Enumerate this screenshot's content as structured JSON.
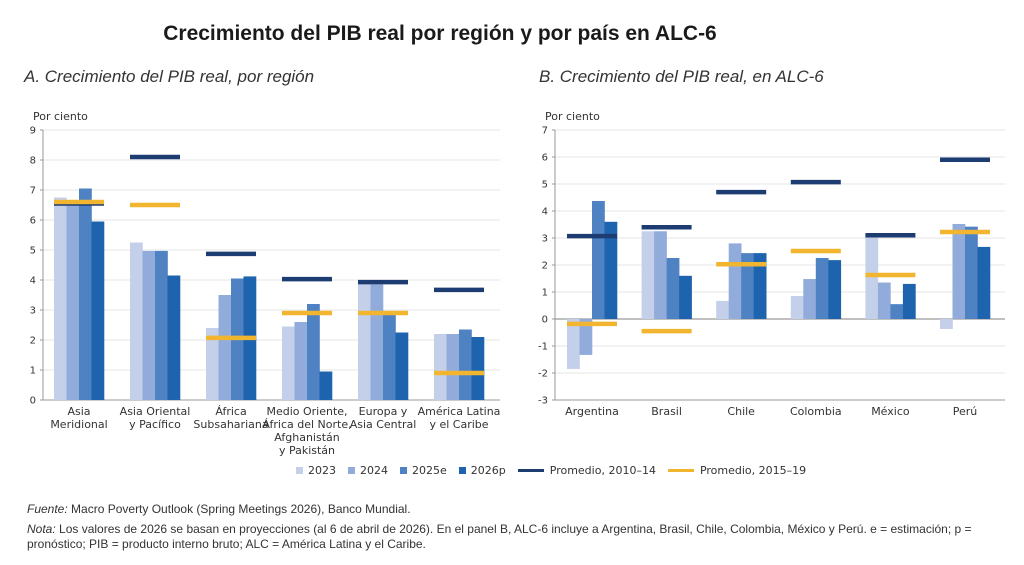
{
  "title": "Crecimiento del PIB real por región y por país en ALC-6",
  "colors": {
    "2023": "#c4d0ea",
    "2024": "#91acdb",
    "2025e": "#4f82c2",
    "2026p": "#1d63ad",
    "avg_2010_14": "#1d3c72",
    "avg_2015_19": "#f2b530",
    "grid": "#e6e6e6",
    "axis": "#999999"
  },
  "legend": {
    "items": [
      {
        "key": "2023",
        "label": "2023",
        "type": "bar"
      },
      {
        "key": "2024",
        "label": "2024",
        "type": "bar"
      },
      {
        "key": "2025e",
        "label": "2025e",
        "type": "bar"
      },
      {
        "key": "2026p",
        "label": "2026p",
        "type": "bar"
      },
      {
        "key": "avg_2010_14",
        "label": "Promedio, 2010–14",
        "type": "line"
      },
      {
        "key": "avg_2015_19",
        "label": "Promedio, 2015–19",
        "type": "line"
      }
    ],
    "placement": "bottom-center"
  },
  "chart_data": [
    {
      "type": "bar",
      "title": "A. Crecimiento del PIB real, por región",
      "ylabel": "Por ciento",
      "xlabel": "",
      "ylim": [
        0,
        9
      ],
      "yticks": [
        0,
        1,
        2,
        3,
        4,
        5,
        6,
        7,
        8,
        9
      ],
      "grid": true,
      "categories": [
        [
          "Asia",
          "Meridional"
        ],
        [
          "Asia Oriental",
          "y Pacífico"
        ],
        [
          "África",
          "Subsahariana"
        ],
        [
          "Medio Oriente,",
          "África del Norte,",
          "Afghanistán",
          "y Pakistán"
        ],
        [
          "Europa y",
          "Asia Central"
        ],
        [
          "América Latina",
          "y el Caribe"
        ]
      ],
      "series": [
        {
          "name": "2023",
          "values": [
            6.75,
            5.25,
            2.4,
            2.45,
            3.85,
            2.2
          ]
        },
        {
          "name": "2024",
          "values": [
            6.6,
            4.97,
            3.5,
            2.6,
            3.85,
            2.2
          ]
        },
        {
          "name": "2025e",
          "values": [
            7.05,
            4.97,
            4.05,
            3.2,
            2.85,
            2.35
          ]
        },
        {
          "name": "2026p",
          "values": [
            5.95,
            4.15,
            4.12,
            0.95,
            2.25,
            2.1
          ]
        }
      ],
      "reference_lines": [
        {
          "name": "Promedio, 2010–14",
          "values": [
            6.55,
            8.1,
            4.87,
            4.03,
            3.93,
            3.67
          ]
        },
        {
          "name": "Promedio, 2015–19",
          "values": [
            6.6,
            6.5,
            2.07,
            2.9,
            2.9,
            0.9
          ]
        }
      ]
    },
    {
      "type": "bar",
      "title": "B. Crecimiento del PIB real, en ALC-6",
      "ylabel": "Por ciento",
      "xlabel": "",
      "ylim": [
        -3,
        7
      ],
      "yticks": [
        -3,
        -2,
        -1,
        0,
        1,
        2,
        3,
        4,
        5,
        6,
        7
      ],
      "grid": true,
      "categories": [
        [
          "Argentina"
        ],
        [
          "Brasil"
        ],
        [
          "Chile"
        ],
        [
          "Colombia"
        ],
        [
          "México"
        ],
        [
          "Perú"
        ]
      ],
      "series": [
        {
          "name": "2023",
          "values": [
            -1.85,
            3.25,
            0.67,
            0.85,
            3.05,
            -0.37
          ]
        },
        {
          "name": "2024",
          "values": [
            -1.33,
            3.25,
            2.8,
            1.48,
            1.35,
            3.52
          ]
        },
        {
          "name": "2025e",
          "values": [
            4.37,
            2.26,
            2.44,
            2.26,
            0.55,
            3.42
          ]
        },
        {
          "name": "2026p",
          "values": [
            3.6,
            1.6,
            2.44,
            2.18,
            1.3,
            2.67
          ]
        }
      ],
      "reference_lines": [
        {
          "name": "Promedio, 2010–14",
          "values": [
            3.07,
            3.4,
            4.7,
            5.07,
            3.1,
            5.9
          ]
        },
        {
          "name": "Promedio, 2015–19",
          "values": [
            -0.18,
            -0.45,
            2.03,
            2.52,
            1.63,
            3.22
          ]
        }
      ]
    }
  ],
  "footer": {
    "fuente_label": "Fuente:",
    "fuente_text": " Macro Poverty Outlook (Spring Meetings 2026), Banco Mundial.",
    "nota_label": "Nota:",
    "nota_text": " Los valores de 2026 se basan en proyecciones (al 6 de abril de 2026). En el panel B, ALC-6 incluye a Argentina, Brasil, Chile, Colombia, México y Perú. e = estimación; p = pronóstico; PIB = producto interno bruto; ALC = América Latina y el Caribe."
  }
}
